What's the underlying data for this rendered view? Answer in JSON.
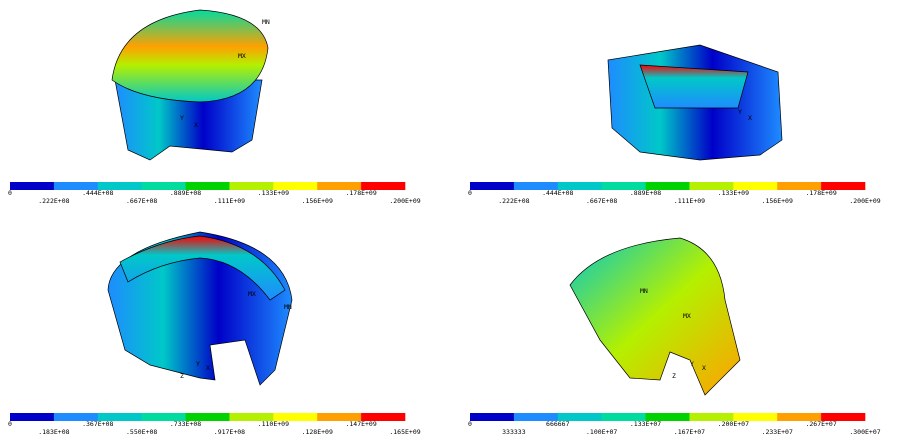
{
  "panels": [
    {
      "labels": [
        "MN",
        "MX",
        "Y",
        "X"
      ],
      "legend": [
        "0",
        ".222E+08",
        ".444E+08",
        ".667E+08",
        ".889E+08",
        ".111E+09",
        ".133E+09",
        ".156E+09",
        ".178E+09",
        ".200E+09"
      ]
    },
    {
      "labels": [
        "Y",
        "X"
      ],
      "legend": [
        "0",
        ".222E+08",
        ".444E+08",
        ".667E+08",
        ".889E+08",
        ".111E+09",
        ".133E+09",
        ".156E+09",
        ".178E+09",
        ".200E+09"
      ]
    },
    {
      "labels": [
        "MX",
        "MN",
        "Y",
        "Z",
        "X"
      ],
      "legend": [
        "0",
        ".183E+08",
        ".367E+08",
        ".550E+08",
        ".733E+08",
        ".917E+08",
        ".110E+09",
        ".128E+09",
        ".147E+09",
        ".165E+09"
      ]
    },
    {
      "labels": [
        "MN",
        "MX",
        "Y",
        "Z",
        "X"
      ],
      "legend": [
        "0",
        "333333",
        "666667",
        ".100E+07",
        ".133E+07",
        ".167E+07",
        ".200E+07",
        ".233E+07",
        ".267E+07",
        ".300E+07"
      ]
    }
  ],
  "band_colors": [
    "#0000c8",
    "#1e8cff",
    "#00c8c8",
    "#00dca0",
    "#00d200",
    "#b4f000",
    "#ffff00",
    "#ffa000",
    "#ff0000"
  ]
}
